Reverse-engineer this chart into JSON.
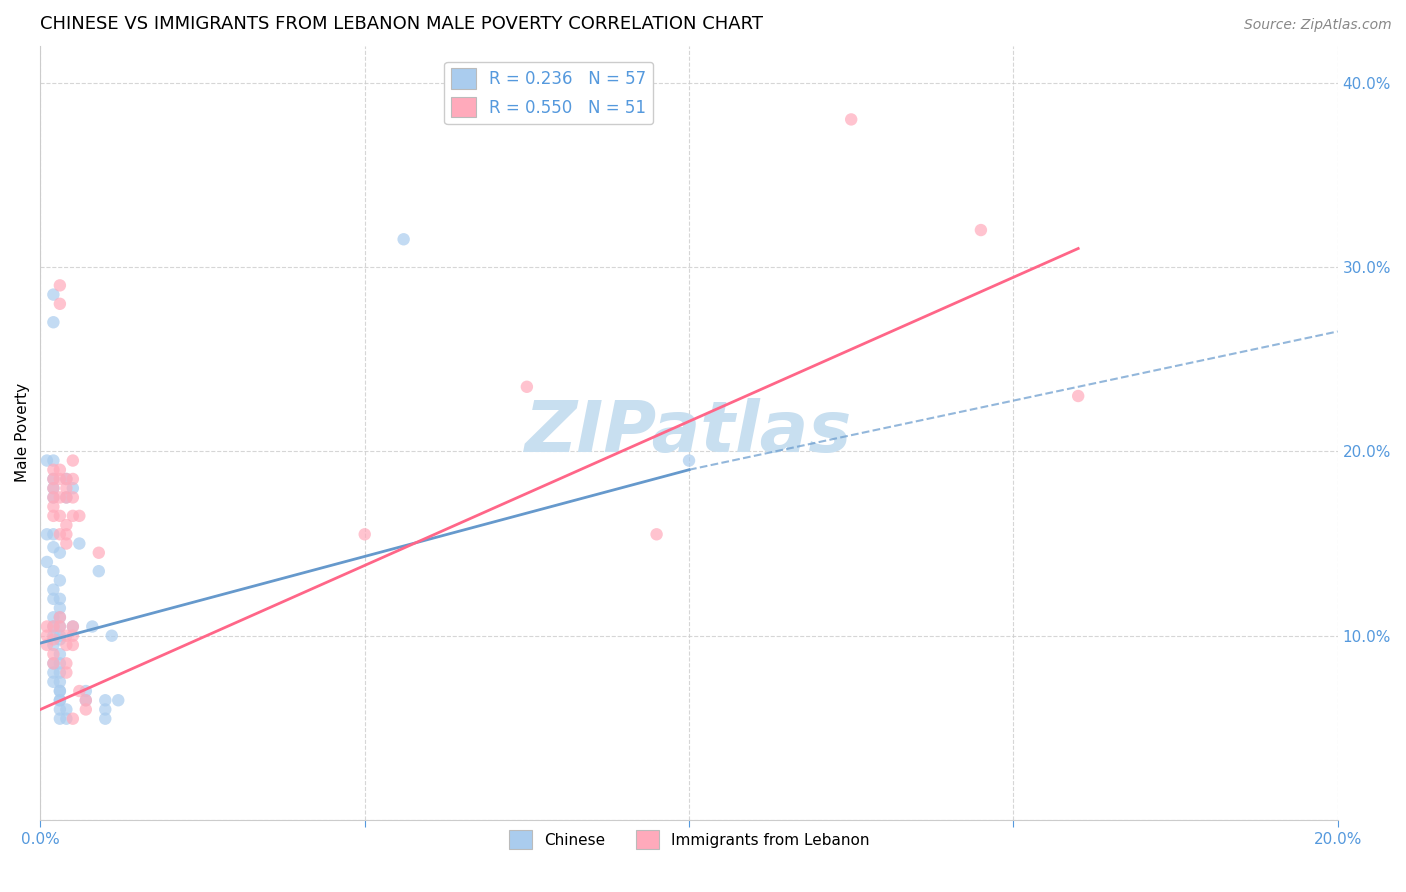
{
  "title": "CHINESE VS IMMIGRANTS FROM LEBANON MALE POVERTY CORRELATION CHART",
  "source": "Source: ZipAtlas.com",
  "ylabel_label": "Male Poverty",
  "watermark": "ZIPatlas",
  "xlim": [
    0.0,
    0.2
  ],
  "ylim": [
    0.0,
    0.42
  ],
  "xticks": [
    0.0,
    0.05,
    0.1,
    0.15,
    0.2
  ],
  "yticks": [
    0.0,
    0.1,
    0.2,
    0.3,
    0.4
  ],
  "xtick_labels": [
    "0.0%",
    "",
    "",
    "",
    "20.0%"
  ],
  "ytick_labels": [
    "",
    "10.0%",
    "20.0%",
    "30.0%",
    "40.0%"
  ],
  "legend_entries": [
    {
      "label": "R = 0.236   N = 57",
      "color": "#aaccee"
    },
    {
      "label": "R = 0.550   N = 51",
      "color": "#ffaabb"
    }
  ],
  "chinese_scatter": [
    [
      0.001,
      0.195
    ],
    [
      0.001,
      0.155
    ],
    [
      0.001,
      0.14
    ],
    [
      0.002,
      0.285
    ],
    [
      0.002,
      0.27
    ],
    [
      0.002,
      0.195
    ],
    [
      0.002,
      0.185
    ],
    [
      0.002,
      0.18
    ],
    [
      0.002,
      0.175
    ],
    [
      0.002,
      0.155
    ],
    [
      0.002,
      0.148
    ],
    [
      0.002,
      0.135
    ],
    [
      0.002,
      0.125
    ],
    [
      0.002,
      0.12
    ],
    [
      0.002,
      0.11
    ],
    [
      0.002,
      0.105
    ],
    [
      0.002,
      0.1
    ],
    [
      0.002,
      0.095
    ],
    [
      0.002,
      0.085
    ],
    [
      0.002,
      0.08
    ],
    [
      0.002,
      0.075
    ],
    [
      0.003,
      0.145
    ],
    [
      0.003,
      0.13
    ],
    [
      0.003,
      0.12
    ],
    [
      0.003,
      0.115
    ],
    [
      0.003,
      0.11
    ],
    [
      0.003,
      0.105
    ],
    [
      0.003,
      0.1
    ],
    [
      0.003,
      0.098
    ],
    [
      0.003,
      0.09
    ],
    [
      0.003,
      0.085
    ],
    [
      0.003,
      0.08
    ],
    [
      0.003,
      0.075
    ],
    [
      0.003,
      0.07
    ],
    [
      0.003,
      0.065
    ],
    [
      0.004,
      0.185
    ],
    [
      0.004,
      0.175
    ],
    [
      0.005,
      0.18
    ],
    [
      0.005,
      0.105
    ],
    [
      0.006,
      0.15
    ],
    [
      0.008,
      0.105
    ],
    [
      0.009,
      0.135
    ],
    [
      0.011,
      0.1
    ],
    [
      0.003,
      0.055
    ],
    [
      0.003,
      0.06
    ],
    [
      0.003,
      0.065
    ],
    [
      0.003,
      0.07
    ],
    [
      0.004,
      0.055
    ],
    [
      0.004,
      0.06
    ],
    [
      0.007,
      0.07
    ],
    [
      0.007,
      0.065
    ],
    [
      0.01,
      0.065
    ],
    [
      0.01,
      0.06
    ],
    [
      0.01,
      0.055
    ],
    [
      0.012,
      0.065
    ],
    [
      0.056,
      0.315
    ],
    [
      0.1,
      0.195
    ]
  ],
  "lebanon_scatter": [
    [
      0.001,
      0.105
    ],
    [
      0.001,
      0.1
    ],
    [
      0.001,
      0.095
    ],
    [
      0.002,
      0.19
    ],
    [
      0.002,
      0.185
    ],
    [
      0.002,
      0.18
    ],
    [
      0.002,
      0.175
    ],
    [
      0.002,
      0.17
    ],
    [
      0.002,
      0.165
    ],
    [
      0.002,
      0.105
    ],
    [
      0.002,
      0.098
    ],
    [
      0.002,
      0.09
    ],
    [
      0.002,
      0.085
    ],
    [
      0.003,
      0.29
    ],
    [
      0.003,
      0.28
    ],
    [
      0.003,
      0.19
    ],
    [
      0.003,
      0.185
    ],
    [
      0.003,
      0.175
    ],
    [
      0.003,
      0.165
    ],
    [
      0.003,
      0.155
    ],
    [
      0.003,
      0.11
    ],
    [
      0.003,
      0.105
    ],
    [
      0.004,
      0.185
    ],
    [
      0.004,
      0.18
    ],
    [
      0.004,
      0.175
    ],
    [
      0.004,
      0.16
    ],
    [
      0.004,
      0.155
    ],
    [
      0.004,
      0.15
    ],
    [
      0.004,
      0.1
    ],
    [
      0.004,
      0.095
    ],
    [
      0.004,
      0.085
    ],
    [
      0.004,
      0.08
    ],
    [
      0.005,
      0.195
    ],
    [
      0.005,
      0.185
    ],
    [
      0.005,
      0.175
    ],
    [
      0.005,
      0.165
    ],
    [
      0.005,
      0.105
    ],
    [
      0.005,
      0.1
    ],
    [
      0.005,
      0.095
    ],
    [
      0.005,
      0.055
    ],
    [
      0.006,
      0.165
    ],
    [
      0.006,
      0.07
    ],
    [
      0.007,
      0.065
    ],
    [
      0.007,
      0.06
    ],
    [
      0.009,
      0.145
    ],
    [
      0.05,
      0.155
    ],
    [
      0.075,
      0.235
    ],
    [
      0.095,
      0.155
    ],
    [
      0.125,
      0.38
    ],
    [
      0.145,
      0.32
    ],
    [
      0.16,
      0.23
    ]
  ],
  "chinese_line_solid": [
    [
      0.0,
      0.096
    ],
    [
      0.1,
      0.19
    ]
  ],
  "lebanon_line_solid": [
    [
      0.0,
      0.06
    ],
    [
      0.16,
      0.31
    ]
  ],
  "chinese_line_dashed": [
    [
      0.1,
      0.19
    ],
    [
      0.2,
      0.265
    ]
  ],
  "chinese_line_color": "#6699cc",
  "lebanon_line_color": "#ff6688",
  "scatter_blue": "#aaccee",
  "scatter_pink": "#ffaabb",
  "scatter_alpha": 0.7,
  "scatter_size": 80,
  "bg_color": "#ffffff",
  "grid_color": "#cccccc",
  "title_fontsize": 13,
  "axis_label_fontsize": 11,
  "tick_fontsize": 11,
  "watermark_color": "#c8dff0",
  "watermark_fontsize": 52,
  "right_tick_color": "#5599dd",
  "bottom_tick_color": "#5599dd"
}
